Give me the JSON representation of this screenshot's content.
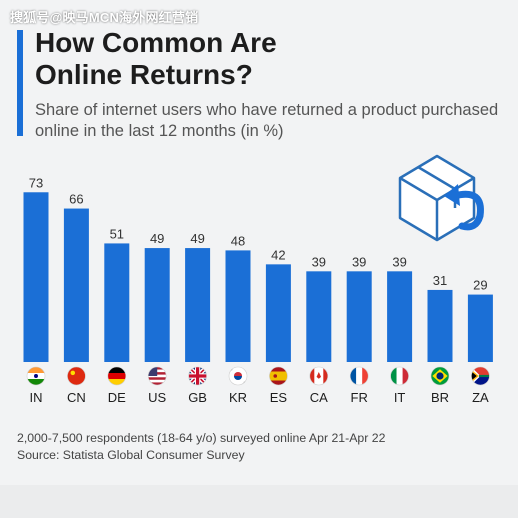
{
  "watermark": "搜狐号@映马MCN海外网红营销",
  "header": {
    "title": "How Common Are\nOnline Returns?",
    "subtitle": "Share of internet users who have returned a product purchased online in the last 12 months (in %)"
  },
  "colors": {
    "bar": "#1b6fd6",
    "accent": "#1b6fd6",
    "background": "#f2f3f4"
  },
  "flags": [
    "india-flag",
    "china-flag",
    "germany-flag",
    "us-flag",
    "uk-flag",
    "korea-flag",
    "spain-flag",
    "canada-flag",
    "france-flag",
    "italy-flag",
    "brazil-flag",
    "south-africa-flag"
  ],
  "footer": {
    "note": "2,000-7,500 respondents (18-64 y/o) surveyed online Apr 21-Apr 22",
    "source": "Source: Statista Global Consumer Survey"
  },
  "chart_data": {
    "type": "bar",
    "categories": [
      "IN",
      "CN",
      "DE",
      "US",
      "GB",
      "KR",
      "ES",
      "CA",
      "FR",
      "IT",
      "BR",
      "ZA"
    ],
    "values": [
      73,
      66,
      51,
      49,
      49,
      48,
      42,
      39,
      39,
      39,
      31,
      29
    ],
    "title": "How Common Are Online Returns?",
    "subtitle": "Share of internet users who have returned a product purchased online in the last 12 months (in %)",
    "ylim": [
      0,
      80
    ],
    "grid": false
  }
}
